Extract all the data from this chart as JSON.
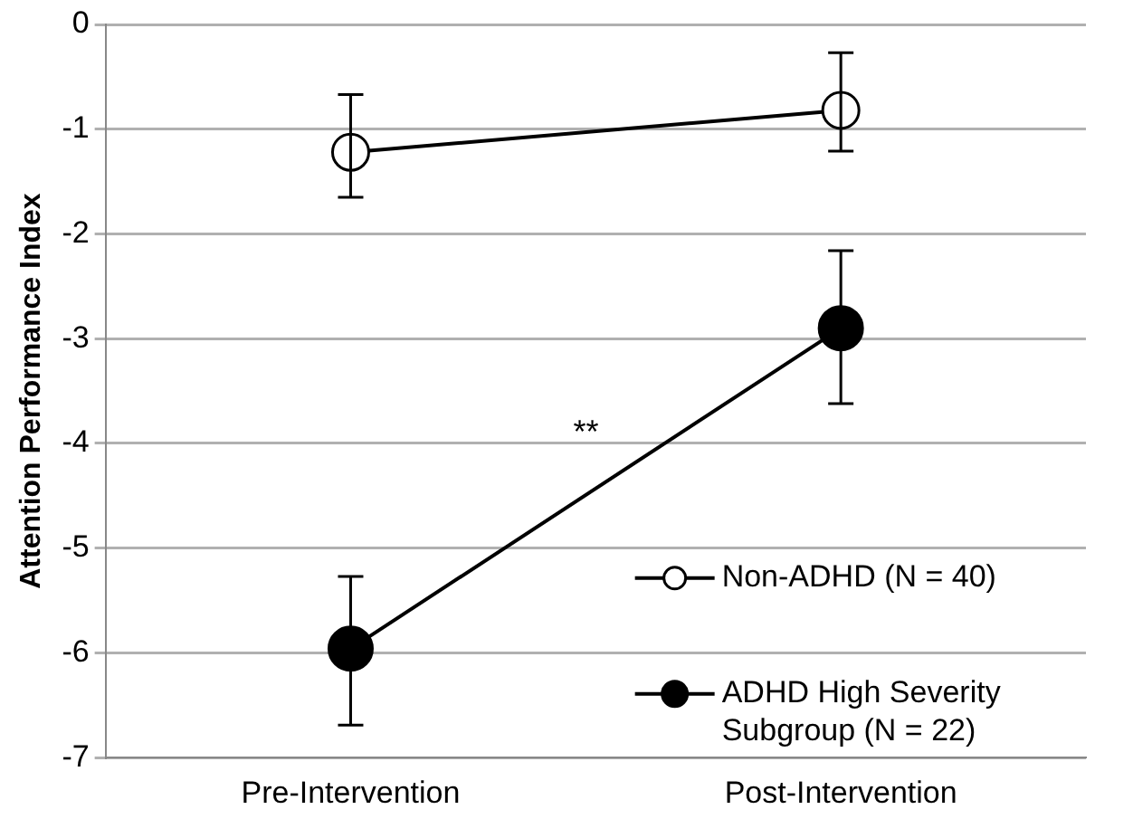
{
  "chart_data": {
    "type": "line",
    "ylabel": "Attention Performance Index",
    "categories": [
      "Pre-Intervention",
      "Post-Intervention"
    ],
    "series": [
      {
        "name": "Non-ADHD (N = 40)",
        "color": "#000000",
        "values": [
          -1.22,
          -0.82
        ],
        "errors": [
          [
            -1.65,
            -0.67
          ],
          [
            -1.21,
            -0.27
          ]
        ]
      },
      {
        "name": "ADHD High Severity Subgroup (N = 22)",
        "color": "#000000",
        "values": [
          -5.96,
          -2.9
        ],
        "errors": [
          [
            -6.69,
            -5.27
          ],
          [
            -3.62,
            -2.16
          ]
        ]
      }
    ],
    "ylim": [
      -7,
      0
    ],
    "yticks": [
      -7,
      -6,
      -5,
      -4,
      -3,
      -2,
      -1,
      0
    ],
    "grid": "y",
    "legend": "bottom right",
    "marker": "circle",
    "line_style": "solid",
    "annotations": [
      "**"
    ]
  }
}
